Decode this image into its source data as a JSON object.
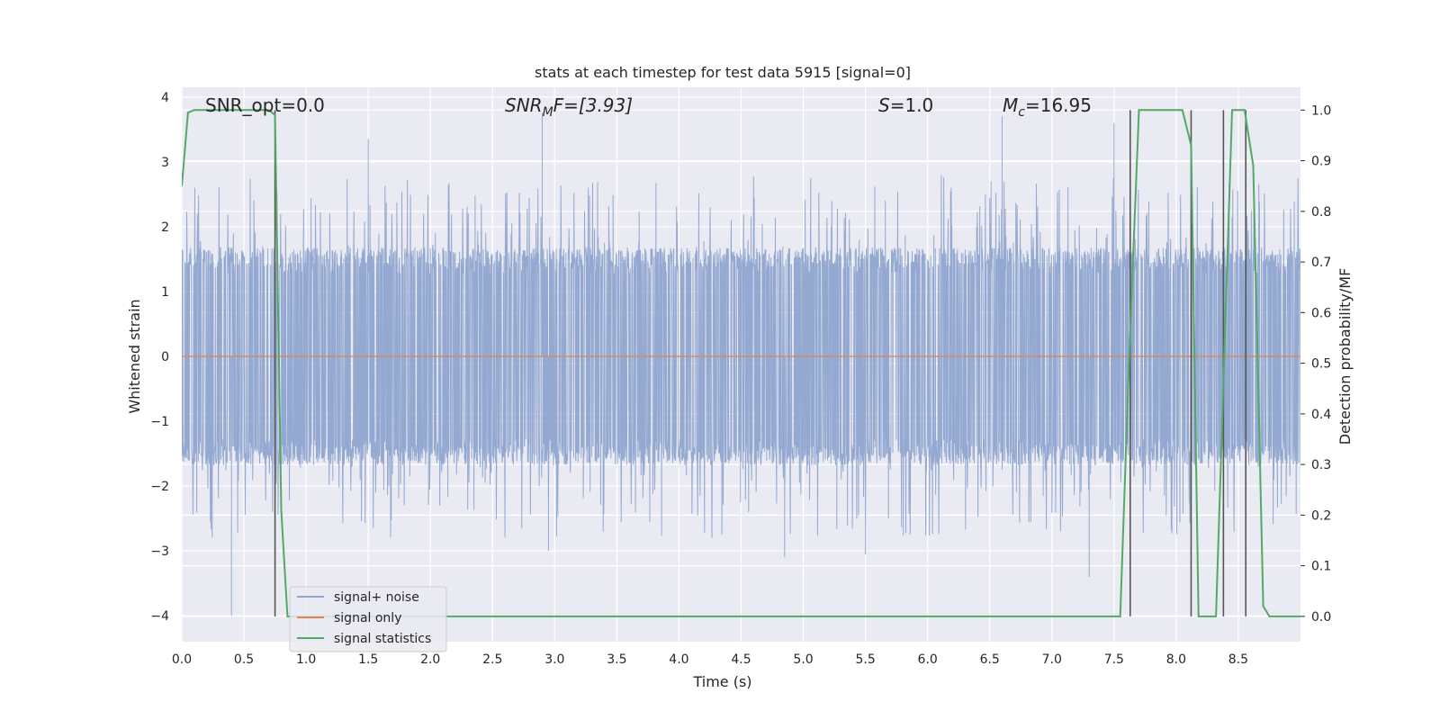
{
  "chart_data": {
    "type": "line",
    "title": "stats at each timestep for test data 5915 [signal=0]",
    "xlabel": "Time (s)",
    "ylabel": "Whitened strain",
    "y2label": "Detection probability/MF",
    "xlim": [
      0,
      9.0
    ],
    "ylim": [
      -4.4,
      4.15
    ],
    "y2lim": [
      -0.05,
      1.045
    ],
    "xticks": [
      "0.0",
      "0.5",
      "1.0",
      "1.5",
      "2.0",
      "2.5",
      "3.0",
      "3.5",
      "4.0",
      "4.5",
      "5.0",
      "5.5",
      "6.0",
      "6.5",
      "7.0",
      "7.5",
      "8.0",
      "8.5"
    ],
    "yticks": [
      "−4",
      "−3",
      "−2",
      "−1",
      "0",
      "1",
      "2",
      "3",
      "4"
    ],
    "y2ticks": [
      "0.0",
      "0.1",
      "0.2",
      "0.3",
      "0.4",
      "0.5",
      "0.6",
      "0.7",
      "0.8",
      "0.9",
      "1.0"
    ],
    "grid": true,
    "legend_position": "lower-left",
    "annotations": {
      "snr_opt": "SNR_opt=0.0",
      "snr_mf_name": "SNR",
      "snr_mf_sub": "M",
      "snr_mf_suffix": "F=[3.93]",
      "s_name": "S",
      "s_value": "=1.0",
      "mc_name": "M",
      "mc_sub": "c",
      "mc_value": "=16.95"
    },
    "series": [
      {
        "name": "signal+ noise",
        "color": "#8fa5cf",
        "axis": "left",
        "style": "noise envelope",
        "duration": 9.0,
        "amplitude_core": 1.6,
        "notable_peaks": [
          {
            "x": 2.9,
            "y": 3.75
          },
          {
            "x": 1.5,
            "y": 3.35
          },
          {
            "x": 6.6,
            "y": 3.7
          },
          {
            "x": 7.5,
            "y": 3.6
          },
          {
            "x": 0.4,
            "y": -4.0
          },
          {
            "x": 4.85,
            "y": -3.1
          },
          {
            "x": 5.5,
            "y": -3.05
          },
          {
            "x": 2.95,
            "y": -3.0
          },
          {
            "x": 7.3,
            "y": -3.4
          }
        ]
      },
      {
        "name": "signal only",
        "color": "#dd8452",
        "axis": "left",
        "x": [
          0,
          9.0
        ],
        "y": [
          0,
          0
        ]
      },
      {
        "name": "signal statistics",
        "color": "#55a868",
        "axis": "right",
        "x": [
          0,
          0.05,
          0.1,
          0.7,
          0.75,
          0.8,
          0.85,
          7.55,
          7.62,
          7.7,
          8.05,
          8.12,
          8.18,
          8.25,
          8.32,
          8.45,
          8.5,
          8.55,
          8.62,
          8.7,
          8.75,
          9.0
        ],
        "y": [
          0.85,
          0.995,
          1.0,
          1.0,
          0.99,
          0.21,
          0.0,
          0.0,
          0.5,
          1.0,
          1.0,
          0.93,
          0.0,
          0.0,
          0.0,
          1.0,
          1.0,
          1.0,
          0.89,
          0.02,
          0.0,
          0.0
        ]
      },
      {
        "name": "",
        "color": "#555555",
        "axis": "right",
        "style": "vertical markers",
        "x": [
          0.75,
          7.63,
          8.12,
          8.38,
          8.56
        ],
        "y_range": [
          0.0,
          1.0
        ]
      }
    ]
  }
}
